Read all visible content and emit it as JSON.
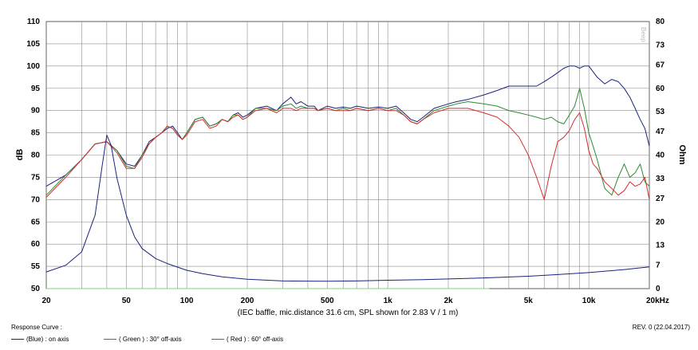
{
  "chart_data": {
    "type": "line",
    "x_scale": "log",
    "xlim": [
      20,
      20000
    ],
    "ylim": [
      50,
      110
    ],
    "y2lim": [
      0,
      80
    ],
    "grid": true,
    "ylabel": "dB",
    "y2label": "Ohm",
    "caption": "(IEC baffle, mic.distance 31.6 cm, SPL shown for 2.83 V / 1 m)",
    "watermark": "Beep",
    "x_ticks": [
      {
        "value": 20,
        "label": "20"
      },
      {
        "value": 50,
        "label": "50"
      },
      {
        "value": 100,
        "label": "100"
      },
      {
        "value": 200,
        "label": "200"
      },
      {
        "value": 500,
        "label": "500"
      },
      {
        "value": 1000,
        "label": "1k"
      },
      {
        "value": 2000,
        "label": "2k"
      },
      {
        "value": 5000,
        "label": "5k"
      },
      {
        "value": 10000,
        "label": "10k"
      },
      {
        "value": 20000,
        "label": "20kHz"
      }
    ],
    "y_ticks": [
      {
        "value": 110,
        "label": "110"
      },
      {
        "value": 105,
        "label": "105"
      },
      {
        "value": 100,
        "label": "100"
      },
      {
        "value": 95,
        "label": "95"
      },
      {
        "value": 90,
        "label": "90"
      },
      {
        "value": 85,
        "label": "85"
      },
      {
        "value": 80,
        "label": "80"
      },
      {
        "value": 75,
        "label": "75"
      },
      {
        "value": 70,
        "label": "70"
      },
      {
        "value": 65,
        "label": "65"
      },
      {
        "value": 60,
        "label": "60"
      },
      {
        "value": 55,
        "label": "55"
      },
      {
        "value": 50,
        "label": "50"
      }
    ],
    "y2_ticks": [
      {
        "value": 80,
        "label": "80"
      },
      {
        "value": 73,
        "label": "73"
      },
      {
        "value": 67,
        "label": "67"
      },
      {
        "value": 60,
        "label": "60"
      },
      {
        "value": 53,
        "label": "53"
      },
      {
        "value": 47,
        "label": "47"
      },
      {
        "value": 40,
        "label": "40"
      },
      {
        "value": 33,
        "label": "33"
      },
      {
        "value": 27,
        "label": "27"
      },
      {
        "value": 20,
        "label": "20"
      },
      {
        "value": 13,
        "label": "13"
      },
      {
        "value": 7,
        "label": "7"
      },
      {
        "value": 0,
        "label": "0"
      }
    ],
    "series": [
      {
        "name": "(Blue) : on axis",
        "color": "#1a237e",
        "axis": "left",
        "x": [
          20,
          25,
          30,
          35,
          40,
          45,
          50,
          55,
          60,
          65,
          70,
          75,
          80,
          85,
          90,
          95,
          100,
          110,
          120,
          130,
          140,
          150,
          160,
          170,
          180,
          190,
          200,
          220,
          250,
          280,
          300,
          330,
          350,
          370,
          400,
          430,
          450,
          500,
          550,
          600,
          650,
          700,
          800,
          900,
          1000,
          1100,
          1200,
          1300,
          1400,
          1500,
          1700,
          2000,
          2200,
          2500,
          3000,
          3500,
          4000,
          4500,
          5000,
          5500,
          6000,
          6500,
          7000,
          7500,
          8000,
          8500,
          9000,
          9500,
          10000,
          11000,
          12000,
          13000,
          14000,
          15000,
          16000,
          17000,
          18000,
          19000,
          20000
        ],
        "y": [
          73,
          75.5,
          79,
          82.5,
          83,
          81,
          78,
          77.5,
          80,
          83,
          84,
          85,
          86,
          86.5,
          85,
          83.5,
          85,
          88,
          88.5,
          86.5,
          87,
          88,
          87.5,
          89,
          89.5,
          88.5,
          89,
          90.5,
          91,
          90,
          91.5,
          93,
          91.5,
          92,
          91,
          91,
          90,
          91,
          90.5,
          90.8,
          90.5,
          91,
          90.5,
          90.8,
          90.5,
          91,
          89.5,
          88,
          87.5,
          88.5,
          90.5,
          91.5,
          92,
          92.5,
          93.5,
          94.5,
          95.5,
          95.5,
          95.5,
          95.5,
          96.5,
          97.5,
          98.5,
          99.5,
          100,
          100,
          99.5,
          100,
          100,
          97.5,
          96,
          97,
          96.5,
          95,
          93,
          90.5,
          88,
          86,
          82
        ]
      },
      {
        "name": "(Green) : 30° off-axis",
        "color": "#2e8b2e",
        "axis": "left",
        "x": [
          20,
          25,
          30,
          35,
          40,
          45,
          50,
          55,
          60,
          65,
          70,
          75,
          80,
          85,
          90,
          95,
          100,
          110,
          120,
          130,
          140,
          150,
          160,
          170,
          180,
          190,
          200,
          220,
          250,
          280,
          300,
          330,
          350,
          370,
          400,
          430,
          450,
          500,
          550,
          600,
          650,
          700,
          800,
          900,
          1000,
          1100,
          1200,
          1300,
          1400,
          1500,
          1700,
          2000,
          2200,
          2500,
          3000,
          3500,
          4000,
          4500,
          5000,
          5500,
          6000,
          6500,
          7000,
          7500,
          8000,
          8500,
          9000,
          9500,
          10000,
          10500,
          11000,
          12000,
          13000,
          14000,
          15000,
          16000,
          17000,
          18000,
          19000,
          20000
        ],
        "y": [
          71,
          75.5,
          79,
          82.5,
          83,
          81,
          77.5,
          77,
          80,
          82.5,
          84,
          85,
          86.5,
          86,
          84.5,
          83.5,
          85,
          88,
          88.5,
          86.5,
          87,
          88,
          87.5,
          89,
          89,
          88,
          88.5,
          90.5,
          90.5,
          90,
          91,
          91.5,
          90.5,
          91,
          90.5,
          90.5,
          90,
          90.5,
          90,
          90.5,
          90,
          90.5,
          90,
          90.5,
          90,
          90.5,
          89,
          87.5,
          87,
          88,
          90,
          91,
          91.5,
          92,
          91.5,
          91,
          90,
          89.5,
          89,
          88.5,
          88,
          88.5,
          87.5,
          87,
          89,
          91,
          95,
          90.5,
          85,
          82,
          79,
          72.5,
          71,
          75,
          78,
          75,
          76,
          78,
          74,
          73
        ]
      },
      {
        "name": "(Red) : 60° off-axis",
        "color": "#d32f2f",
        "axis": "left",
        "x": [
          20,
          25,
          30,
          35,
          40,
          45,
          50,
          55,
          60,
          65,
          70,
          75,
          80,
          85,
          90,
          95,
          100,
          110,
          120,
          130,
          140,
          150,
          160,
          170,
          180,
          190,
          200,
          220,
          250,
          280,
          300,
          330,
          350,
          370,
          400,
          430,
          450,
          500,
          550,
          600,
          650,
          700,
          800,
          900,
          1000,
          1100,
          1200,
          1300,
          1400,
          1500,
          1700,
          2000,
          2200,
          2500,
          3000,
          3500,
          4000,
          4500,
          5000,
          5500,
          6000,
          6500,
          7000,
          7500,
          8000,
          8500,
          9000,
          9500,
          10000,
          10500,
          11000,
          12000,
          13000,
          14000,
          15000,
          16000,
          17000,
          18000,
          19000,
          20000
        ],
        "y": [
          70.5,
          75,
          79,
          82.5,
          83,
          80.5,
          77,
          77,
          79.5,
          82.5,
          84,
          85,
          86.5,
          86,
          84.5,
          83.5,
          84.5,
          87.5,
          88,
          86,
          86.5,
          88,
          87.5,
          88.5,
          89,
          88,
          88.5,
          90,
          90.5,
          89.5,
          90.5,
          90.5,
          90,
          90.5,
          90.5,
          90.5,
          90,
          90.5,
          90,
          90,
          90,
          90.5,
          90,
          90.5,
          90,
          90,
          89,
          87.5,
          87,
          88,
          89.5,
          90.5,
          90.5,
          90.5,
          89.5,
          88.5,
          86.5,
          84,
          80,
          75,
          70,
          77.5,
          83,
          84,
          85.5,
          88,
          89.5,
          86,
          81,
          78,
          77,
          74,
          72.5,
          71,
          72,
          74,
          73,
          73.5,
          75,
          70
        ]
      },
      {
        "name": "Impedance",
        "color": "#1a237e",
        "axis": "right",
        "x": [
          20,
          25,
          30,
          35,
          38,
          40,
          42,
          45,
          50,
          55,
          60,
          70,
          80,
          100,
          120,
          150,
          200,
          300,
          500,
          700,
          1000,
          1500,
          2000,
          3000,
          5000,
          7000,
          10000,
          15000,
          20000
        ],
        "y": [
          5,
          7,
          11,
          22,
          37,
          46,
          43,
          33,
          22,
          15.5,
          12,
          9,
          7.5,
          5.5,
          4.5,
          3.5,
          2.8,
          2.3,
          2.2,
          2.3,
          2.5,
          2.7,
          2.9,
          3.2,
          3.7,
          4.2,
          4.8,
          5.7,
          6.5
        ]
      },
      {
        "name": "Noise floor",
        "color": "#7cd67c",
        "axis": "left",
        "x": [
          20,
          3200
        ],
        "y": [
          50,
          50
        ]
      }
    ]
  },
  "footer": {
    "title": "Response Curve :",
    "revision": "REV. 0 (22.04.2017)",
    "legend": [
      {
        "label": "(Blue) : on axis",
        "color": "#1a237e"
      },
      {
        "label": "( Green ) : 30° off-axis",
        "color": "#2e8b2e"
      },
      {
        "label": "( Red ) : 60° off-axis",
        "color": "#d32f2f"
      }
    ]
  }
}
